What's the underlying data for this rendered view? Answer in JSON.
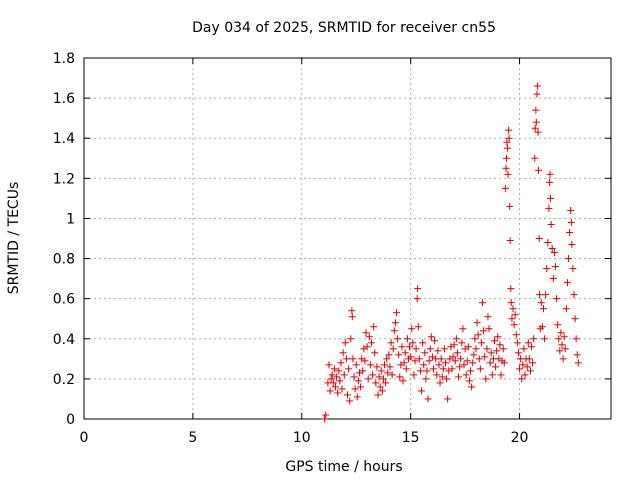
{
  "chart_data": {
    "type": "scatter",
    "title": "Day 034 of 2025, SRMTID for receiver cn55",
    "xlabel": "GPS time / hours",
    "ylabel": "SRMTID / TECUs",
    "xlim": [
      0,
      24.2
    ],
    "ylim": [
      0,
      1.8
    ],
    "xticks": [
      0,
      5,
      10,
      15,
      20
    ],
    "xtick_labels": [
      "0",
      "5",
      "10",
      "15",
      "20"
    ],
    "yticks": [
      0,
      0.2,
      0.4,
      0.6,
      0.8,
      1.0,
      1.2,
      1.4,
      1.6,
      1.8
    ],
    "ytick_labels": [
      "0",
      "0.2",
      "0.4",
      "0.6",
      "0.8",
      "1",
      "1.2",
      "1.4",
      "1.6",
      "1.8"
    ],
    "grid": true,
    "marker": "plus",
    "color": "#e00000",
    "series": [
      {
        "name": "SRMTID",
        "points": [
          [
            11.05,
            0.0
          ],
          [
            11.1,
            0.02
          ],
          [
            11.2,
            0.18
          ],
          [
            11.25,
            0.27
          ],
          [
            11.3,
            0.14
          ],
          [
            11.35,
            0.2
          ],
          [
            11.4,
            0.22
          ],
          [
            11.45,
            0.18
          ],
          [
            11.5,
            0.25
          ],
          [
            11.55,
            0.16
          ],
          [
            11.6,
            0.21
          ],
          [
            11.65,
            0.13
          ],
          [
            11.7,
            0.24
          ],
          [
            11.75,
            0.19
          ],
          [
            11.8,
            0.28
          ],
          [
            11.85,
            0.15
          ],
          [
            11.9,
            0.33
          ],
          [
            11.95,
            0.22
          ],
          [
            12.0,
            0.38
          ],
          [
            12.05,
            0.3
          ],
          [
            12.1,
            0.12
          ],
          [
            12.15,
            0.25
          ],
          [
            12.2,
            0.09
          ],
          [
            12.25,
            0.4
          ],
          [
            12.3,
            0.54
          ],
          [
            12.32,
            0.51
          ],
          [
            12.35,
            0.3
          ],
          [
            12.4,
            0.21
          ],
          [
            12.45,
            0.15
          ],
          [
            12.5,
            0.27
          ],
          [
            12.55,
            0.11
          ],
          [
            12.6,
            0.19
          ],
          [
            12.65,
            0.23
          ],
          [
            12.7,
            0.16
          ],
          [
            12.75,
            0.3
          ],
          [
            12.8,
            0.24
          ],
          [
            12.85,
            0.35
          ],
          [
            12.9,
            0.29
          ],
          [
            12.95,
            0.43
          ],
          [
            13.0,
            0.36
          ],
          [
            13.05,
            0.2
          ],
          [
            13.1,
            0.41
          ],
          [
            13.15,
            0.27
          ],
          [
            13.2,
            0.38
          ],
          [
            13.25,
            0.22
          ],
          [
            13.3,
            0.46
          ],
          [
            13.35,
            0.33
          ],
          [
            13.4,
            0.18
          ],
          [
            13.45,
            0.26
          ],
          [
            13.5,
            0.12
          ],
          [
            13.55,
            0.21
          ],
          [
            13.6,
            0.16
          ],
          [
            13.65,
            0.24
          ],
          [
            13.7,
            0.14
          ],
          [
            13.75,
            0.2
          ],
          [
            13.8,
            0.27
          ],
          [
            13.85,
            0.18
          ],
          [
            13.9,
            0.3
          ],
          [
            13.95,
            0.23
          ],
          [
            14.0,
            0.32
          ],
          [
            14.05,
            0.26
          ],
          [
            14.1,
            0.38
          ],
          [
            14.15,
            0.22
          ],
          [
            14.2,
            0.35
          ],
          [
            14.25,
            0.44
          ],
          [
            14.3,
            0.48
          ],
          [
            14.35,
            0.53
          ],
          [
            14.4,
            0.4
          ],
          [
            14.45,
            0.32
          ],
          [
            14.5,
            0.21
          ],
          [
            14.55,
            0.27
          ],
          [
            14.6,
            0.36
          ],
          [
            14.65,
            0.19
          ],
          [
            14.7,
            0.28
          ],
          [
            14.75,
            0.33
          ],
          [
            14.8,
            0.25
          ],
          [
            14.85,
            0.4
          ],
          [
            14.9,
            0.3
          ],
          [
            14.95,
            0.36
          ],
          [
            15.0,
            0.31
          ],
          [
            15.05,
            0.45
          ],
          [
            15.1,
            0.38
          ],
          [
            15.15,
            0.22
          ],
          [
            15.2,
            0.29
          ],
          [
            15.25,
            0.35
          ],
          [
            15.3,
            0.6
          ],
          [
            15.32,
            0.65
          ],
          [
            15.35,
            0.46
          ],
          [
            15.4,
            0.3
          ],
          [
            15.45,
            0.24
          ],
          [
            15.5,
            0.14
          ],
          [
            15.55,
            0.38
          ],
          [
            15.6,
            0.27
          ],
          [
            15.65,
            0.33
          ],
          [
            15.7,
            0.2
          ],
          [
            15.75,
            0.24
          ],
          [
            15.8,
            0.1
          ],
          [
            15.85,
            0.29
          ],
          [
            15.9,
            0.35
          ],
          [
            15.95,
            0.41
          ],
          [
            16.0,
            0.31
          ],
          [
            16.05,
            0.25
          ],
          [
            16.1,
            0.39
          ],
          [
            16.15,
            0.3
          ],
          [
            16.2,
            0.22
          ],
          [
            16.25,
            0.34
          ],
          [
            16.3,
            0.27
          ],
          [
            16.35,
            0.18
          ],
          [
            16.4,
            0.3
          ],
          [
            16.45,
            0.21
          ],
          [
            16.5,
            0.25
          ],
          [
            16.55,
            0.35
          ],
          [
            16.6,
            0.28
          ],
          [
            16.65,
            0.2
          ],
          [
            16.7,
            0.1
          ],
          [
            16.75,
            0.24
          ],
          [
            16.8,
            0.3
          ],
          [
            16.85,
            0.36
          ],
          [
            16.9,
            0.25
          ],
          [
            16.95,
            0.31
          ],
          [
            17.0,
            0.37
          ],
          [
            17.05,
            0.29
          ],
          [
            17.1,
            0.4
          ],
          [
            17.15,
            0.33
          ],
          [
            17.2,
            0.21
          ],
          [
            17.25,
            0.26
          ],
          [
            17.3,
            0.3
          ],
          [
            17.35,
            0.38
          ],
          [
            17.4,
            0.45
          ],
          [
            17.45,
            0.27
          ],
          [
            17.5,
            0.35
          ],
          [
            17.55,
            0.22
          ],
          [
            17.6,
            0.29
          ],
          [
            17.65,
            0.36
          ],
          [
            17.7,
            0.19
          ],
          [
            17.75,
            0.24
          ],
          [
            17.8,
            0.16
          ],
          [
            17.85,
            0.28
          ],
          [
            17.9,
            0.32
          ],
          [
            17.95,
            0.4
          ],
          [
            18.0,
            0.35
          ],
          [
            18.05,
            0.48
          ],
          [
            18.1,
            0.42
          ],
          [
            18.15,
            0.3
          ],
          [
            18.2,
            0.25
          ],
          [
            18.25,
            0.38
          ],
          [
            18.3,
            0.58
          ],
          [
            18.35,
            0.44
          ],
          [
            18.4,
            0.31
          ],
          [
            18.45,
            0.2
          ],
          [
            18.5,
            0.35
          ],
          [
            18.55,
            0.51
          ],
          [
            18.6,
            0.45
          ],
          [
            18.65,
            0.28
          ],
          [
            18.7,
            0.33
          ],
          [
            18.75,
            0.22
          ],
          [
            18.8,
            0.3
          ],
          [
            18.85,
            0.39
          ],
          [
            18.9,
            0.26
          ],
          [
            18.95,
            0.34
          ],
          [
            19.0,
            0.41
          ],
          [
            19.05,
            0.3
          ],
          [
            19.1,
            0.37
          ],
          [
            19.15,
            0.22
          ],
          [
            19.2,
            0.29
          ],
          [
            19.25,
            0.35
          ],
          [
            19.3,
            0.28
          ],
          [
            19.35,
            1.15
          ],
          [
            19.38,
            1.25
          ],
          [
            19.4,
            1.3
          ],
          [
            19.42,
            1.38
          ],
          [
            19.45,
            1.35
          ],
          [
            19.47,
            1.22
          ],
          [
            19.5,
            1.44
          ],
          [
            19.52,
            1.4
          ],
          [
            19.55,
            1.06
          ],
          [
            19.57,
            0.89
          ],
          [
            19.6,
            0.65
          ],
          [
            19.62,
            0.58
          ],
          [
            19.65,
            0.5
          ],
          [
            19.7,
            0.55
          ],
          [
            19.75,
            0.47
          ],
          [
            19.8,
            0.52
          ],
          [
            19.85,
            0.42
          ],
          [
            19.9,
            0.38
          ],
          [
            19.95,
            0.33
          ],
          [
            20.0,
            0.25
          ],
          [
            20.05,
            0.3
          ],
          [
            20.1,
            0.2
          ],
          [
            20.15,
            0.27
          ],
          [
            20.2,
            0.35
          ],
          [
            20.25,
            0.22
          ],
          [
            20.3,
            0.3
          ],
          [
            20.35,
            0.26
          ],
          [
            20.4,
            0.38
          ],
          [
            20.45,
            0.3
          ],
          [
            20.5,
            0.24
          ],
          [
            20.55,
            0.36
          ],
          [
            20.6,
            0.28
          ],
          [
            20.65,
            0.4
          ],
          [
            20.7,
            1.3
          ],
          [
            20.72,
            1.45
          ],
          [
            20.75,
            1.54
          ],
          [
            20.77,
            1.48
          ],
          [
            20.8,
            1.62
          ],
          [
            20.82,
            1.66
          ],
          [
            20.85,
            1.43
          ],
          [
            20.87,
            1.24
          ],
          [
            20.9,
            0.9
          ],
          [
            20.92,
            0.62
          ],
          [
            20.95,
            0.45
          ],
          [
            21.0,
            0.58
          ],
          [
            21.05,
            0.46
          ],
          [
            21.1,
            0.55
          ],
          [
            21.15,
            0.4
          ],
          [
            21.2,
            0.62
          ],
          [
            21.25,
            0.75
          ],
          [
            21.3,
            0.88
          ],
          [
            21.35,
            1.05
          ],
          [
            21.38,
            1.18
          ],
          [
            21.4,
            1.22
          ],
          [
            21.42,
            1.1
          ],
          [
            21.45,
            0.97
          ],
          [
            21.5,
            0.85
          ],
          [
            21.55,
            0.7
          ],
          [
            21.6,
            0.83
          ],
          [
            21.65,
            0.76
          ],
          [
            21.7,
            0.6
          ],
          [
            21.75,
            0.47
          ],
          [
            21.8,
            0.4
          ],
          [
            21.85,
            0.34
          ],
          [
            21.9,
            0.43
          ],
          [
            21.95,
            0.37
          ],
          [
            22.0,
            0.3
          ],
          [
            22.05,
            0.41
          ],
          [
            22.1,
            0.35
          ],
          [
            22.15,
            0.55
          ],
          [
            22.2,
            0.68
          ],
          [
            22.25,
            0.8
          ],
          [
            22.3,
            0.93
          ],
          [
            22.35,
            1.04
          ],
          [
            22.38,
            0.98
          ],
          [
            22.4,
            0.87
          ],
          [
            22.45,
            0.75
          ],
          [
            22.5,
            0.62
          ],
          [
            22.55,
            0.5
          ],
          [
            22.6,
            0.4
          ],
          [
            22.65,
            0.32
          ],
          [
            22.7,
            0.28
          ]
        ]
      }
    ]
  }
}
